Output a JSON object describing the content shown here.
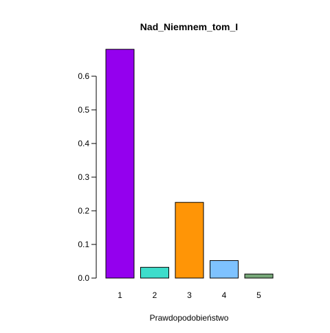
{
  "chart_data": {
    "type": "bar",
    "title": "Nad_Niemnem_tom_I",
    "xlabel": "Prawdopodobieństwo",
    "ylabel": "",
    "categories": [
      "1",
      "2",
      "3",
      "4",
      "5"
    ],
    "values": [
      0.68,
      0.032,
      0.225,
      0.052,
      0.012
    ],
    "colors": [
      "#9400EE",
      "#3DDDCB",
      "#FF9506",
      "#7EC2FF",
      "#77A879"
    ],
    "ylim": [
      0,
      0.7
    ],
    "yticks": [
      "0.0",
      "0.1",
      "0.2",
      "0.3",
      "0.4",
      "0.5",
      "0.6"
    ],
    "grid": false,
    "legend": "none"
  }
}
